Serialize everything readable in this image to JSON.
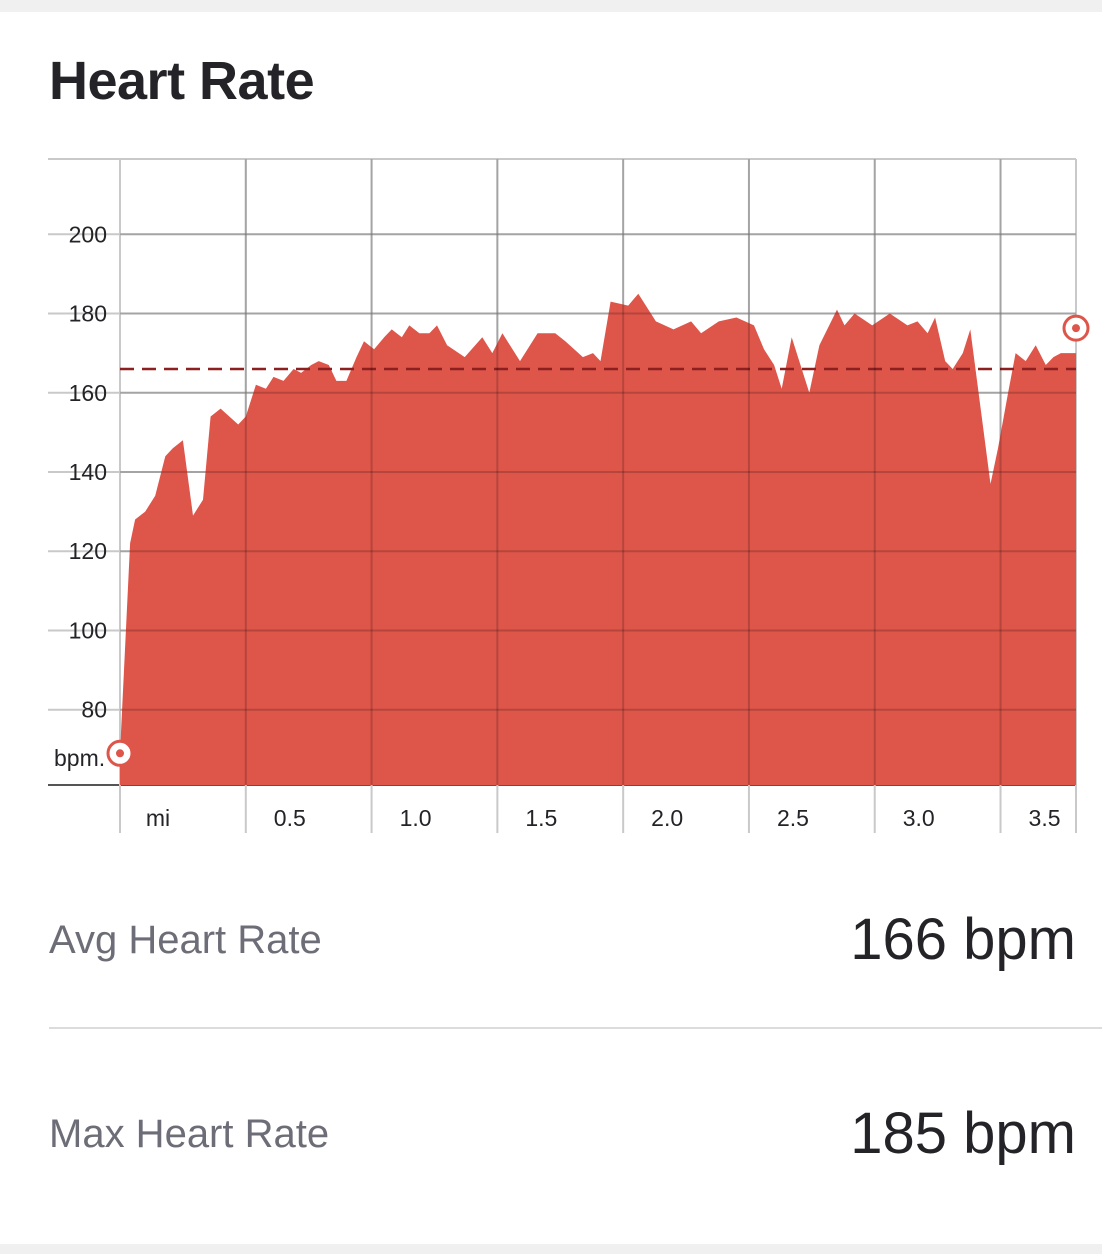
{
  "title": "Heart Rate",
  "stats": {
    "avg_label": "Avg Heart Rate",
    "avg_value": "166 bpm",
    "max_label": "Max Heart Rate",
    "max_value": "185 bpm"
  },
  "colors": {
    "hr_fill": "#de554a",
    "avg_line": "#8c1f1f",
    "elevation_fill": "#c8413c",
    "grid": "#c9c9c9"
  },
  "chart_data": {
    "type": "area",
    "title": "Heart Rate",
    "ylabel": "bpm.",
    "xlabel": "mi",
    "xlim": [
      0,
      3.8
    ],
    "ylim": [
      61,
      219
    ],
    "yticks": [
      200,
      180,
      160,
      140,
      120,
      100,
      80
    ],
    "ytick_labels": [
      "200",
      "180",
      "160",
      "140",
      "120",
      "100",
      "80"
    ],
    "xticks": [
      0.5,
      1.0,
      1.5,
      2.0,
      2.5,
      3.0,
      3.5
    ],
    "xtick_labels": [
      "0.5",
      "1.0",
      "1.5",
      "2.0",
      "2.5",
      "3.0",
      "3.5"
    ],
    "grid": true,
    "avg_line": 166,
    "series": [
      {
        "type": "area",
        "x": [
          0.0,
          0.04,
          0.06,
          0.1,
          0.14,
          0.18,
          0.21,
          0.25,
          0.29,
          0.33,
          0.36,
          0.4,
          0.47,
          0.5,
          0.54,
          0.58,
          0.61,
          0.65,
          0.69,
          0.72,
          0.76,
          0.79,
          0.83,
          0.86,
          0.9,
          0.94,
          0.97,
          1.01,
          1.05,
          1.08,
          1.12,
          1.15,
          1.19,
          1.23,
          1.26,
          1.3,
          1.37,
          1.44,
          1.48,
          1.52,
          1.59,
          1.66,
          1.73,
          1.77,
          1.84,
          1.88,
          1.91,
          1.95,
          2.02,
          2.06,
          2.13,
          2.2,
          2.27,
          2.31,
          2.38,
          2.45,
          2.52,
          2.56,
          2.6,
          2.63,
          2.67,
          2.74,
          2.78,
          2.85,
          2.88,
          2.92,
          2.99,
          3.06,
          3.13,
          3.17,
          3.21,
          3.24,
          3.28,
          3.31,
          3.35,
          3.38,
          3.46,
          3.49,
          3.53,
          3.56,
          3.6,
          3.64,
          3.68,
          3.71,
          3.74,
          3.8
        ],
        "y": [
          69,
          122,
          128,
          130,
          134,
          144,
          146,
          148,
          129,
          133,
          154,
          156,
          152,
          154,
          162,
          161,
          164,
          163,
          166,
          165,
          167,
          168,
          167,
          163,
          163,
          169,
          173,
          171,
          174,
          176,
          174,
          177,
          175,
          175,
          177,
          172,
          169,
          174,
          170,
          175,
          168,
          175,
          175,
          173,
          169,
          170,
          168,
          183,
          182,
          185,
          178,
          176,
          178,
          175,
          178,
          179,
          177,
          171,
          167,
          161,
          174,
          160,
          172,
          181,
          177,
          180,
          177,
          180,
          177,
          178,
          175,
          179,
          168,
          166,
          170,
          176,
          137,
          146,
          160,
          170,
          168,
          172,
          167,
          169,
          170,
          170
        ]
      }
    ]
  }
}
